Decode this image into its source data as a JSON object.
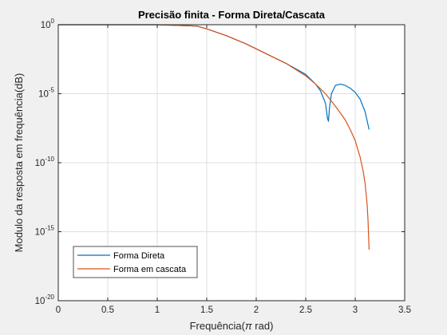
{
  "chart_data": {
    "type": "line",
    "title": "Precisão finita - Forma Direta/Cascata",
    "xlabel_main": "Frequência(",
    "xlabel_pi": "π",
    "xlabel_tail": " rad)",
    "ylabel": "Modulo da resposta em frequência(dB)",
    "xlim": [
      0,
      3.5
    ],
    "ylim_exponent": [
      -20,
      0
    ],
    "y_scale": "log",
    "grid": true,
    "legend_position": "bottom-left",
    "x_ticks": [
      "0",
      "0.5",
      "1",
      "1.5",
      "2",
      "2.5",
      "3",
      "3.5"
    ],
    "y_ticks": [
      {
        "base": "10",
        "exp": "0"
      },
      {
        "base": "10",
        "exp": "-5"
      },
      {
        "base": "10",
        "exp": "-10"
      },
      {
        "base": "10",
        "exp": "-15"
      },
      {
        "base": "10",
        "exp": "-20"
      }
    ],
    "series": [
      {
        "name": "Forma Direta",
        "color": "#0072bd",
        "x": [
          0,
          1.0,
          1.4,
          1.5,
          1.7,
          1.9,
          2.1,
          2.3,
          2.5,
          2.6,
          2.65,
          2.7,
          2.72,
          2.73,
          2.74,
          2.76,
          2.8,
          2.85,
          2.9,
          2.95,
          3.0,
          3.05,
          3.1,
          3.14
        ],
        "log10_y": [
          0,
          0,
          -0.1,
          -0.3,
          -0.8,
          -1.4,
          -2.1,
          -2.8,
          -3.6,
          -4.3,
          -4.8,
          -5.7,
          -6.8,
          -7.0,
          -6.0,
          -5.0,
          -4.4,
          -4.3,
          -4.4,
          -4.6,
          -4.9,
          -5.4,
          -6.3,
          -7.6
        ]
      },
      {
        "name": "Forma em cascata",
        "color": "#d95319",
        "x": [
          0,
          1.0,
          1.4,
          1.5,
          1.7,
          1.9,
          2.1,
          2.3,
          2.5,
          2.6,
          2.7,
          2.8,
          2.9,
          2.95,
          3.0,
          3.05,
          3.08,
          3.1,
          3.12,
          3.13,
          3.135,
          3.14
        ],
        "log10_y": [
          0,
          0,
          -0.1,
          -0.3,
          -0.8,
          -1.4,
          -2.1,
          -2.8,
          -3.7,
          -4.3,
          -5.0,
          -5.9,
          -6.9,
          -7.6,
          -8.4,
          -9.6,
          -10.6,
          -11.5,
          -13.0,
          -14.2,
          -15.2,
          -16.3
        ]
      }
    ]
  }
}
